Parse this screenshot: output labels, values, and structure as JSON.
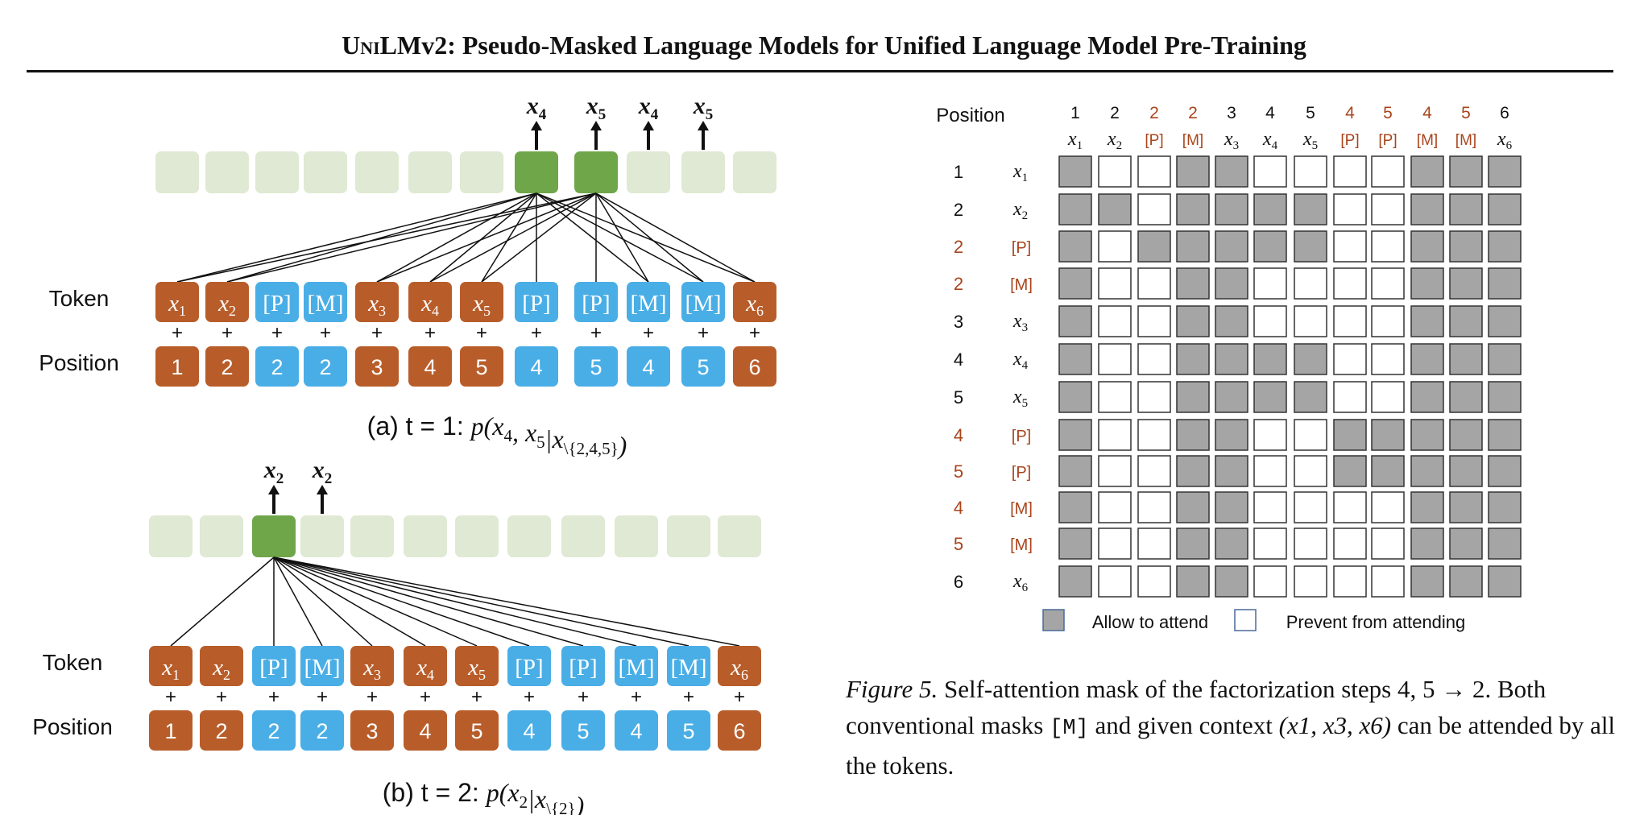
{
  "header": {
    "title_sc": "UniLM",
    "title_rest": "v2: Pseudo-Masked Language Models for Unified Language Model Pre-Training"
  },
  "colors": {
    "given": "#b85d2a",
    "mask": "#4aaee6",
    "output_active": "#6fa64a",
    "output_idle": "#dfe9d3",
    "attend": "#a5a5a5",
    "pseudo_label": "#a9441b"
  },
  "panel_a": {
    "row_token_label": "Token",
    "row_position_label": "Position",
    "outputs": [
      "x4",
      "x5",
      "x4",
      "x5"
    ],
    "tokens": [
      "x1",
      "x2",
      "[P]",
      "[M]",
      "x3",
      "x4",
      "x5",
      "[P]",
      "[P]",
      "[M]",
      "[M]",
      "x6"
    ],
    "positions": [
      "1",
      "2",
      "2",
      "2",
      "3",
      "4",
      "5",
      "4",
      "5",
      "4",
      "5",
      "6"
    ],
    "token_kinds": [
      "g",
      "g",
      "m",
      "m",
      "g",
      "g",
      "g",
      "m",
      "m",
      "m",
      "m",
      "g"
    ],
    "caption_prefix": "(a) t = 1: ",
    "caption_math": "p(x4, x5|x\\{2,4,5})"
  },
  "panel_b": {
    "row_token_label": "Token",
    "row_position_label": "Position",
    "outputs": [
      "x2",
      "x2"
    ],
    "tokens": [
      "x1",
      "x2",
      "[P]",
      "[M]",
      "x3",
      "x4",
      "x5",
      "[P]",
      "[P]",
      "[M]",
      "[M]",
      "x6"
    ],
    "positions": [
      "1",
      "2",
      "2",
      "2",
      "3",
      "4",
      "5",
      "4",
      "5",
      "4",
      "5",
      "6"
    ],
    "token_kinds": [
      "g",
      "g",
      "m",
      "m",
      "g",
      "g",
      "g",
      "m",
      "m",
      "m",
      "m",
      "g"
    ],
    "caption_prefix": "(b) t = 2: ",
    "caption_math": "p(x2|x\\{2})"
  },
  "mask_matrix": {
    "position_header": "Position",
    "col_positions": [
      "1",
      "2",
      "2",
      "2",
      "3",
      "4",
      "5",
      "4",
      "5",
      "4",
      "5",
      "6"
    ],
    "col_tokens": [
      "x1",
      "x2",
      "[P]",
      "[M]",
      "x3",
      "x4",
      "x5",
      "[P]",
      "[P]",
      "[M]",
      "[M]",
      "x6"
    ],
    "row_positions": [
      "1",
      "2",
      "2",
      "2",
      "3",
      "4",
      "5",
      "4",
      "5",
      "4",
      "5",
      "6"
    ],
    "row_tokens": [
      "x1",
      "x2",
      "[P]",
      "[M]",
      "x3",
      "x4",
      "x5",
      "[P]",
      "[P]",
      "[M]",
      "[M]",
      "x6"
    ],
    "pseudo_flags": [
      false,
      false,
      true,
      true,
      false,
      false,
      false,
      true,
      true,
      true,
      true,
      false
    ],
    "cells": [
      [
        1,
        0,
        0,
        1,
        1,
        0,
        0,
        0,
        0,
        1,
        1,
        1
      ],
      [
        1,
        1,
        0,
        1,
        1,
        1,
        1,
        0,
        0,
        1,
        1,
        1
      ],
      [
        1,
        0,
        1,
        1,
        1,
        1,
        1,
        0,
        0,
        1,
        1,
        1
      ],
      [
        1,
        0,
        0,
        1,
        1,
        0,
        0,
        0,
        0,
        1,
        1,
        1
      ],
      [
        1,
        0,
        0,
        1,
        1,
        0,
        0,
        0,
        0,
        1,
        1,
        1
      ],
      [
        1,
        0,
        0,
        1,
        1,
        1,
        1,
        0,
        0,
        1,
        1,
        1
      ],
      [
        1,
        0,
        0,
        1,
        1,
        1,
        1,
        0,
        0,
        1,
        1,
        1
      ],
      [
        1,
        0,
        0,
        1,
        1,
        0,
        0,
        1,
        1,
        1,
        1,
        1
      ],
      [
        1,
        0,
        0,
        1,
        1,
        0,
        0,
        1,
        1,
        1,
        1,
        1
      ],
      [
        1,
        0,
        0,
        1,
        1,
        0,
        0,
        0,
        0,
        1,
        1,
        1
      ],
      [
        1,
        0,
        0,
        1,
        1,
        0,
        0,
        0,
        0,
        1,
        1,
        1
      ],
      [
        1,
        0,
        0,
        1,
        1,
        0,
        0,
        0,
        0,
        1,
        1,
        1
      ]
    ],
    "legend_allow": "Allow to attend",
    "legend_prevent": "Prevent from attending"
  },
  "figure_caption": {
    "label": "Figure 5.",
    "text_1": " Self-attention mask of the factorization steps 4, 5 → 2. Both conventional masks ",
    "mono": "[M]",
    "text_2": " and given context ",
    "math": "(x1, x3, x6)",
    "text_3": " can be attended by all the tokens."
  }
}
